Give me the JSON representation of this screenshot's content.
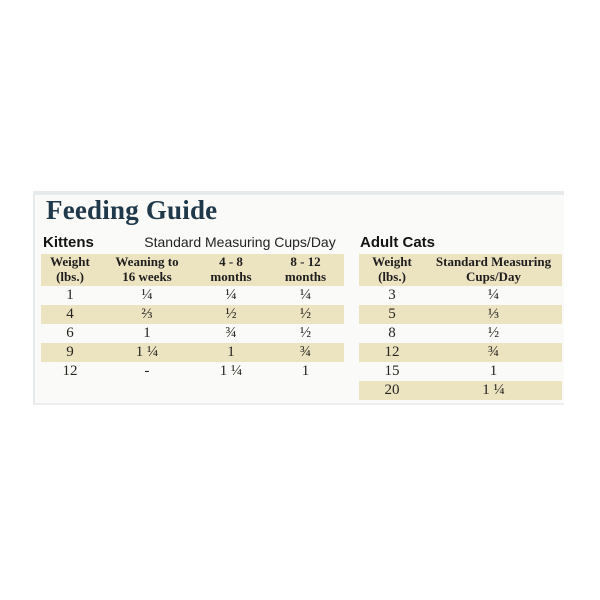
{
  "title": "Feeding Guide",
  "kittens": {
    "label": "Kittens",
    "subtitle": "Standard Measuring Cups/Day",
    "headers": [
      "Weight\n(lbs.)",
      "Weaning to\n16 weeks",
      "4 - 8\nmonths",
      "8 - 12\nmonths"
    ],
    "rows": [
      [
        "1",
        "¼",
        "¼",
        "¼"
      ],
      [
        "4",
        "⅔",
        "½",
        "½"
      ],
      [
        "6",
        "1",
        "¾",
        "½"
      ],
      [
        "9",
        "1 ¼",
        "1",
        "¾"
      ],
      [
        "12",
        "-",
        "1 ¼",
        "1"
      ]
    ]
  },
  "adult": {
    "label": "Adult Cats",
    "headers": [
      "Weight\n(lbs.)",
      "Standard Measuring\nCups/Day"
    ],
    "rows": [
      [
        "3",
        "¼"
      ],
      [
        "5",
        "⅓"
      ],
      [
        "8",
        "½"
      ],
      [
        "12",
        "¾"
      ],
      [
        "15",
        "1"
      ],
      [
        "20",
        "1 ¼"
      ]
    ]
  },
  "colors": {
    "cream": "#ece3c1",
    "title_text": "#20394a"
  }
}
